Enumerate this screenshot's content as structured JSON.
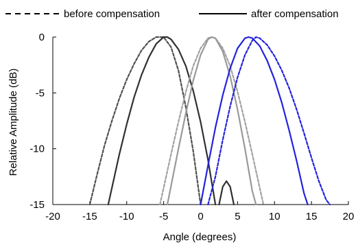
{
  "chart_data": {
    "type": "line",
    "title": "",
    "xlabel": "Angle (degrees)",
    "ylabel": "Relative Amplitude (dB)",
    "xlim": [
      -20,
      20
    ],
    "ylim": [
      -15,
      0
    ],
    "xticks": [
      -20,
      -15,
      -10,
      -5,
      0,
      5,
      10,
      15,
      20
    ],
    "yticks": [
      0,
      -5,
      -10,
      -15
    ],
    "grid": false,
    "legend_position": "top",
    "legend": [
      {
        "label": "before compensation",
        "style": "dashed"
      },
      {
        "label": "after compensation",
        "style": "solid"
      }
    ],
    "series": [
      {
        "style": "dashed",
        "color": "#505050",
        "x": [
          -15.0,
          -14.0,
          -13.0,
          -12.0,
          -11.0,
          -10.0,
          -9.0,
          -8.0,
          -7.0,
          -6.0,
          -5.5,
          -5.0,
          -4.0,
          -3.0,
          -2.0,
          -1.0,
          0.0
        ],
        "y": [
          -15.0,
          -12.3,
          -9.7,
          -7.5,
          -5.5,
          -3.8,
          -2.4,
          -1.2,
          -0.4,
          0.0,
          0.0,
          0.0,
          -0.9,
          -3.0,
          -6.3,
          -10.2,
          -15.0
        ]
      },
      {
        "style": "solid",
        "color": "#303030",
        "x": [
          -12.5,
          -11.0,
          -10.0,
          -9.0,
          -8.0,
          -7.0,
          -6.0,
          -5.0,
          -4.5,
          -4.0,
          -3.0,
          -2.0,
          -1.0,
          0.0,
          1.0,
          2.0
        ],
        "y": [
          -15.0,
          -10.5,
          -7.8,
          -5.4,
          -3.4,
          -1.8,
          -0.6,
          0.0,
          0.0,
          -0.2,
          -1.1,
          -2.6,
          -4.8,
          -7.6,
          -11.0,
          -15.0
        ]
      },
      {
        "style": "solid",
        "color": "#303030",
        "x": [
          2.5,
          3.0,
          3.5,
          4.0,
          4.5
        ],
        "y": [
          -15.0,
          -13.4,
          -12.9,
          -13.4,
          -15.0
        ]
      },
      {
        "style": "dashed",
        "color": "#a0a0a0",
        "x": [
          -5.5,
          -4.0,
          -3.0,
          -2.0,
          -1.0,
          0.0,
          1.0,
          1.5,
          2.0,
          3.0,
          4.0,
          5.0,
          6.0,
          7.0,
          8.0,
          8.5
        ],
        "y": [
          -15.0,
          -10.5,
          -7.6,
          -4.9,
          -2.6,
          -1.0,
          -0.1,
          0.0,
          -0.1,
          -1.0,
          -2.6,
          -4.9,
          -7.6,
          -10.5,
          -13.5,
          -15.0
        ]
      },
      {
        "style": "solid",
        "color": "#999999",
        "x": [
          -4.5,
          -3.0,
          -2.0,
          -1.0,
          0.0,
          1.0,
          1.5,
          2.0,
          3.0,
          4.0,
          5.0,
          6.0,
          7.0,
          7.5
        ],
        "y": [
          -15.0,
          -10.0,
          -6.8,
          -3.9,
          -1.6,
          -0.2,
          0.0,
          -0.1,
          -1.3,
          -3.5,
          -6.5,
          -10.0,
          -13.8,
          -15.0
        ]
      },
      {
        "style": "solid",
        "color": "#2222dd",
        "x": [
          0.0,
          1.0,
          2.0,
          3.0,
          4.0,
          5.0,
          6.0,
          6.5,
          7.0,
          8.0,
          9.0,
          10.0,
          11.0,
          12.0,
          13.0,
          14.0,
          14.5
        ],
        "y": [
          -15.0,
          -11.5,
          -8.1,
          -5.2,
          -2.8,
          -1.0,
          -0.1,
          0.0,
          -0.1,
          -0.8,
          -2.1,
          -3.8,
          -5.9,
          -8.4,
          -11.1,
          -14.0,
          -15.0
        ]
      },
      {
        "style": "dashed",
        "color": "#2222dd",
        "x": [
          1.0,
          2.0,
          3.0,
          4.0,
          5.0,
          6.0,
          7.0,
          7.5,
          8.0,
          9.0,
          10.0,
          11.0,
          12.0,
          13.0,
          14.0,
          15.0,
          16.0,
          17.0,
          17.5
        ],
        "y": [
          -15.0,
          -12.5,
          -9.2,
          -6.2,
          -3.6,
          -1.6,
          -0.3,
          0.0,
          -0.1,
          -0.7,
          -1.7,
          -3.0,
          -4.6,
          -6.5,
          -8.6,
          -10.8,
          -12.9,
          -14.6,
          -15.0
        ]
      }
    ]
  }
}
